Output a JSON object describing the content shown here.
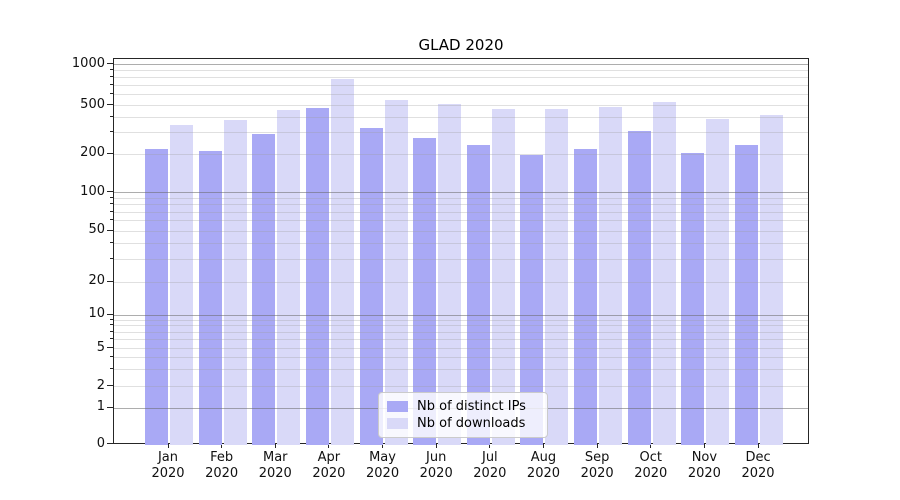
{
  "title": "GLAD 2020",
  "background_color": "#ffffff",
  "chart_data": {
    "type": "bar",
    "title": "GLAD 2020",
    "xlabel": "",
    "ylabel": "",
    "x_categories": [
      {
        "month": "Jan",
        "year": "2020"
      },
      {
        "month": "Feb",
        "year": "2020"
      },
      {
        "month": "Mar",
        "year": "2020"
      },
      {
        "month": "Apr",
        "year": "2020"
      },
      {
        "month": "May",
        "year": "2020"
      },
      {
        "month": "Jun",
        "year": "2020"
      },
      {
        "month": "Jul",
        "year": "2020"
      },
      {
        "month": "Aug",
        "year": "2020"
      },
      {
        "month": "Sep",
        "year": "2020"
      },
      {
        "month": "Oct",
        "year": "2020"
      },
      {
        "month": "Nov",
        "year": "2020"
      },
      {
        "month": "Dec",
        "year": "2020"
      }
    ],
    "series": [
      {
        "name": "Nb of distinct IPs",
        "color": "#a9a9f5",
        "values": [
          220,
          210,
          290,
          480,
          325,
          270,
          235,
          195,
          220,
          310,
          205,
          235
        ]
      },
      {
        "name": "Nb of downloads",
        "color": "#d9d9f8",
        "values": [
          345,
          380,
          460,
          780,
          550,
          510,
          470,
          470,
          490,
          530,
          385,
          420
        ]
      }
    ],
    "y_axis": {
      "scale": "symlog",
      "range": [
        0,
        1000
      ],
      "tick_labels": [
        "0",
        "1",
        "2",
        "5",
        "10",
        "20",
        "50",
        "100",
        "200",
        "500",
        "1000"
      ],
      "tick_values": [
        0,
        1,
        2,
        5,
        10,
        20,
        50,
        100,
        200,
        500,
        1000
      ],
      "major_grid_values": [
        1,
        10,
        100,
        1000
      ],
      "minor_grid_values": [
        2,
        3,
        4,
        5,
        6,
        7,
        8,
        9,
        20,
        30,
        40,
        50,
        60,
        70,
        80,
        90,
        200,
        300,
        400,
        500,
        600,
        700,
        800,
        900
      ]
    },
    "grid": "both, drawn above bars",
    "legend_position": "lower center"
  },
  "legend": {
    "items": [
      {
        "label": "Nb of distinct IPs",
        "color": "#a9a9f5"
      },
      {
        "label": "Nb of downloads",
        "color": "#d9d9f8"
      }
    ]
  }
}
